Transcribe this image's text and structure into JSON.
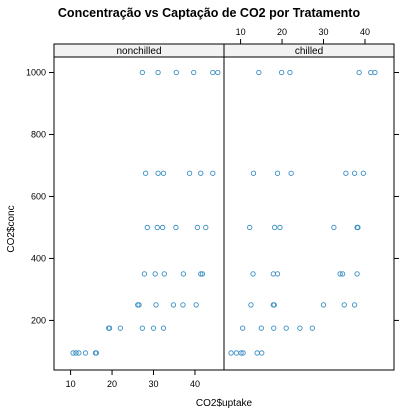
{
  "chart_data": {
    "type": "scatter",
    "title": "Concentração vs Captação de CO2 por Tratamento",
    "xlabel": "CO2$uptake",
    "ylabel": "CO2$conc",
    "xlim": [
      6,
      47
    ],
    "ylim": [
      40,
      1050
    ],
    "x_ticks": [
      10,
      20,
      30,
      40
    ],
    "y_ticks": [
      200,
      400,
      600,
      800,
      1000
    ],
    "grid": false,
    "point_color": "#3a8ec4",
    "panels": [
      {
        "strip": "nonchilled",
        "points": [
          {
            "x": 10.6,
            "y": 95
          },
          {
            "x": 11.3,
            "y": 95
          },
          {
            "x": 12.0,
            "y": 95
          },
          {
            "x": 13.6,
            "y": 95
          },
          {
            "x": 16.0,
            "y": 95
          },
          {
            "x": 16.2,
            "y": 95
          },
          {
            "x": 19.2,
            "y": 175
          },
          {
            "x": 19.4,
            "y": 175
          },
          {
            "x": 22.0,
            "y": 175
          },
          {
            "x": 27.3,
            "y": 175
          },
          {
            "x": 30.0,
            "y": 175
          },
          {
            "x": 32.4,
            "y": 175
          },
          {
            "x": 26.2,
            "y": 250
          },
          {
            "x": 26.5,
            "y": 250
          },
          {
            "x": 30.6,
            "y": 250
          },
          {
            "x": 34.8,
            "y": 250
          },
          {
            "x": 37.1,
            "y": 250
          },
          {
            "x": 40.3,
            "y": 250
          },
          {
            "x": 27.8,
            "y": 350
          },
          {
            "x": 30.4,
            "y": 350
          },
          {
            "x": 32.6,
            "y": 350
          },
          {
            "x": 37.2,
            "y": 350
          },
          {
            "x": 41.4,
            "y": 350
          },
          {
            "x": 41.8,
            "y": 350
          },
          {
            "x": 28.5,
            "y": 500
          },
          {
            "x": 30.9,
            "y": 500
          },
          {
            "x": 32.2,
            "y": 500
          },
          {
            "x": 35.4,
            "y": 500
          },
          {
            "x": 40.6,
            "y": 500
          },
          {
            "x": 42.6,
            "y": 500
          },
          {
            "x": 28.1,
            "y": 675
          },
          {
            "x": 31.1,
            "y": 675
          },
          {
            "x": 32.4,
            "y": 675
          },
          {
            "x": 38.7,
            "y": 675
          },
          {
            "x": 41.4,
            "y": 675
          },
          {
            "x": 44.3,
            "y": 675
          },
          {
            "x": 27.3,
            "y": 1000
          },
          {
            "x": 31.1,
            "y": 1000
          },
          {
            "x": 35.5,
            "y": 1000
          },
          {
            "x": 39.7,
            "y": 1000
          },
          {
            "x": 44.3,
            "y": 1000
          },
          {
            "x": 45.5,
            "y": 1000
          }
        ]
      },
      {
        "strip": "chilled",
        "points": [
          {
            "x": 7.7,
            "y": 95
          },
          {
            "x": 9.0,
            "y": 95
          },
          {
            "x": 10.1,
            "y": 95
          },
          {
            "x": 10.6,
            "y": 95
          },
          {
            "x": 14.0,
            "y": 95
          },
          {
            "x": 15.1,
            "y": 95
          },
          {
            "x": 10.5,
            "y": 175
          },
          {
            "x": 15.0,
            "y": 175
          },
          {
            "x": 18.0,
            "y": 175
          },
          {
            "x": 21.0,
            "y": 175
          },
          {
            "x": 24.3,
            "y": 175
          },
          {
            "x": 27.3,
            "y": 175
          },
          {
            "x": 12.5,
            "y": 250
          },
          {
            "x": 17.9,
            "y": 250
          },
          {
            "x": 18.1,
            "y": 250
          },
          {
            "x": 30.0,
            "y": 250
          },
          {
            "x": 35.0,
            "y": 250
          },
          {
            "x": 37.5,
            "y": 250
          },
          {
            "x": 13.0,
            "y": 350
          },
          {
            "x": 17.9,
            "y": 350
          },
          {
            "x": 18.9,
            "y": 350
          },
          {
            "x": 34.0,
            "y": 350
          },
          {
            "x": 34.6,
            "y": 350
          },
          {
            "x": 38.1,
            "y": 350
          },
          {
            "x": 12.2,
            "y": 500
          },
          {
            "x": 18.2,
            "y": 500
          },
          {
            "x": 19.5,
            "y": 500
          },
          {
            "x": 32.5,
            "y": 500
          },
          {
            "x": 38.1,
            "y": 500
          },
          {
            "x": 38.3,
            "y": 500
          },
          {
            "x": 13.1,
            "y": 675
          },
          {
            "x": 18.9,
            "y": 675
          },
          {
            "x": 22.2,
            "y": 675
          },
          {
            "x": 35.4,
            "y": 675
          },
          {
            "x": 37.5,
            "y": 675
          },
          {
            "x": 39.6,
            "y": 675
          },
          {
            "x": 14.4,
            "y": 1000
          },
          {
            "x": 19.9,
            "y": 1000
          },
          {
            "x": 21.9,
            "y": 1000
          },
          {
            "x": 38.6,
            "y": 1000
          },
          {
            "x": 41.4,
            "y": 1000
          },
          {
            "x": 42.4,
            "y": 1000
          }
        ]
      }
    ]
  }
}
